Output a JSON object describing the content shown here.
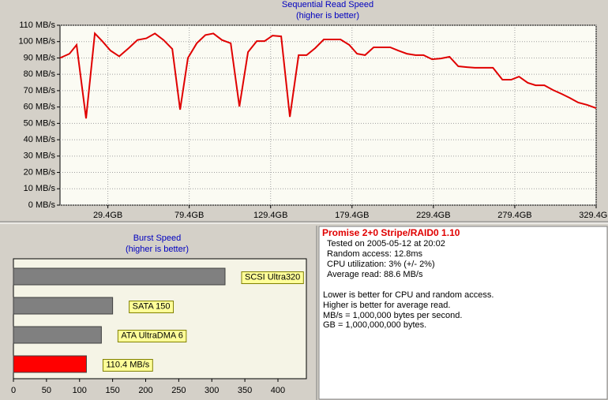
{
  "chart_data": [
    {
      "type": "line",
      "title": "Sequential Read Speed",
      "subtitle": "(higher is better)",
      "color": "#e00000",
      "x": [
        0,
        5.8,
        10.2,
        16,
        21.4,
        26.2,
        31,
        36.4,
        42.2,
        47.6,
        53,
        58.3,
        63.6,
        69,
        73.8,
        78.6,
        84,
        89.3,
        94.2,
        99.5,
        104.9,
        110.2,
        115.5,
        120.9,
        125.7,
        130.6,
        135.9,
        141.2,
        146.6,
        151.5,
        156.8,
        162.1,
        172.3,
        177.7,
        182.5,
        187.4,
        192.7,
        202.9,
        207.8,
        213.1,
        218.4,
        223.3,
        228.6,
        234,
        239.3,
        244.7,
        250,
        254.9,
        260.2,
        266,
        271.8,
        277.2,
        282,
        287.4,
        292.2,
        297.6,
        302.9,
        308.3,
        313.1,
        318.4,
        323.8,
        329.4
      ],
      "values": [
        90,
        92.6,
        98,
        53,
        105,
        100,
        94.5,
        91,
        96,
        101,
        102,
        105,
        101,
        95.5,
        58.4,
        90,
        99,
        104,
        105,
        101,
        99,
        60.3,
        93.6,
        100.3,
        100.3,
        103.7,
        103.2,
        54,
        91.7,
        91.7,
        96,
        101.3,
        101.3,
        98,
        92.6,
        91.7,
        96.5,
        96.5,
        94.5,
        92.6,
        91.7,
        91.7,
        89.2,
        89.7,
        90.7,
        84.9,
        84.4,
        84,
        84,
        84,
        76.7,
        76.7,
        78.6,
        74.8,
        73.3,
        73.3,
        70.4,
        68,
        65.6,
        62.7,
        61.3,
        59.3
      ],
      "xlim": [
        0,
        329.4
      ],
      "xticks": [
        {
          "value": 29.4,
          "label": "29.4GB"
        },
        {
          "value": 79.4,
          "label": "79.4GB"
        },
        {
          "value": 129.4,
          "label": "129.4GB"
        },
        {
          "value": 179.4,
          "label": "179.4GB"
        },
        {
          "value": 229.4,
          "label": "229.4GB"
        },
        {
          "value": 279.4,
          "label": "279.4GB"
        },
        {
          "value": 329.4,
          "label": "329.4GB"
        }
      ],
      "ylim": [
        0,
        110
      ],
      "yticks": [
        {
          "value": 0,
          "label": "0 MB/s"
        },
        {
          "value": 10,
          "label": "10 MB/s"
        },
        {
          "value": 20,
          "label": "20 MB/s"
        },
        {
          "value": 30,
          "label": "30 MB/s"
        },
        {
          "value": 40,
          "label": "40 MB/s"
        },
        {
          "value": 50,
          "label": "50 MB/s"
        },
        {
          "value": 60,
          "label": "60 MB/s"
        },
        {
          "value": 70,
          "label": "70 MB/s"
        },
        {
          "value": 80,
          "label": "80 MB/s"
        },
        {
          "value": 90,
          "label": "90 MB/s"
        },
        {
          "value": 100,
          "label": "100 MB/s"
        },
        {
          "value": 110,
          "label": "110 MB/s"
        }
      ],
      "grid": true
    },
    {
      "type": "hbar",
      "title": "Burst Speed",
      "subtitle": "(higher is better)",
      "categories": [
        "SCSI Ultra320",
        "SATA 150",
        "ATA UltraDMA 6",
        null
      ],
      "values": [
        320,
        150,
        133,
        110.4
      ],
      "value_labels": [
        null,
        null,
        null,
        "110.4 MB/s"
      ],
      "colors": [
        "#808080",
        "#808080",
        "#808080",
        "#ff0000"
      ],
      "xlim": [
        0,
        443
      ],
      "xticks": [
        0,
        50,
        100,
        150,
        200,
        250,
        300,
        350,
        400
      ],
      "grid": false
    }
  ],
  "info_panel": {
    "title": "Promise 2+0 Stripe/RAID0 1.10",
    "details": [
      "Tested on 2005-05-12 at 20:02",
      "Random access: 12.8ms",
      "CPU utilization: 3% (+/- 2%)",
      "Average read: 88.6 MB/s"
    ],
    "notes": [
      "Lower is better for CPU and random access.",
      "Higher is better for average read.",
      "MB/s = 1,000,000 bytes per second.",
      "GB = 1,000,000,000 bytes."
    ]
  }
}
